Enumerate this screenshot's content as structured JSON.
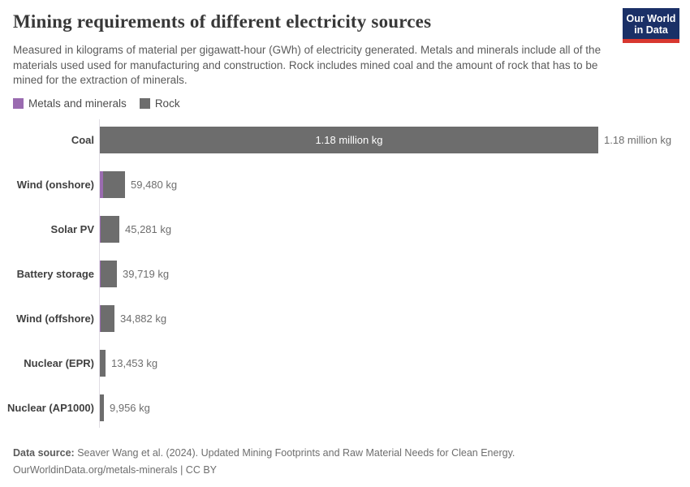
{
  "header": {
    "title": "Mining requirements of different electricity sources",
    "subtitle": "Measured in kilograms of material per gigawatt-hour (GWh) of electricity generated. Metals and minerals include all of the materials used used for manufacturing and construction. Rock includes mined coal and the amount of rock that has to be mined for the extraction of minerals.",
    "logo": {
      "line1": "Our World",
      "line2": "in Data"
    }
  },
  "legend": {
    "items": [
      {
        "label": "Metals and minerals",
        "color": "#9a6bb0"
      },
      {
        "label": "Rock",
        "color": "#6d6d6d"
      }
    ]
  },
  "chart_data": {
    "type": "bar",
    "orientation": "horizontal",
    "title": "Mining requirements of different electricity sources",
    "unit": "kg of material per GWh",
    "grid": false,
    "x_max_kg": 1180000,
    "categories": [
      "Coal",
      "Wind (onshore)",
      "Solar PV",
      "Battery storage",
      "Wind (offshore)",
      "Nuclear (EPR)",
      "Nuclear (AP1000)"
    ],
    "series_names": [
      "Metals and minerals",
      "Rock"
    ],
    "colors": {
      "metals": "#9a6bb0",
      "rock": "#6d6d6d"
    },
    "rows": [
      {
        "category": "Coal",
        "total_kg": 1180000,
        "metals_kg_est": 0,
        "value_label": "1.18 million kg",
        "inside_label": "1.18 million kg"
      },
      {
        "category": "Wind (onshore)",
        "total_kg": 59480,
        "metals_kg_est": 7000,
        "value_label": "59,480 kg"
      },
      {
        "category": "Solar PV",
        "total_kg": 45281,
        "metals_kg_est": 2000,
        "value_label": "45,281 kg"
      },
      {
        "category": "Battery storage",
        "total_kg": 39719,
        "metals_kg_est": 1200,
        "value_label": "39,719 kg"
      },
      {
        "category": "Wind (offshore)",
        "total_kg": 34882,
        "metals_kg_est": 2000,
        "value_label": "34,882 kg"
      },
      {
        "category": "Nuclear (EPR)",
        "total_kg": 13453,
        "metals_kg_est": 400,
        "value_label": "13,453 kg"
      },
      {
        "category": "Nuclear (AP1000)",
        "total_kg": 9956,
        "metals_kg_est": 300,
        "value_label": "9,956 kg"
      }
    ]
  },
  "footer": {
    "source_prefix": "Data source:",
    "source_text": " Seaver Wang et al. (2024). Updated Mining Footprints and Raw Material Needs for Clean Energy.",
    "link_line": "OurWorldinData.org/metals-minerals | CC BY"
  }
}
